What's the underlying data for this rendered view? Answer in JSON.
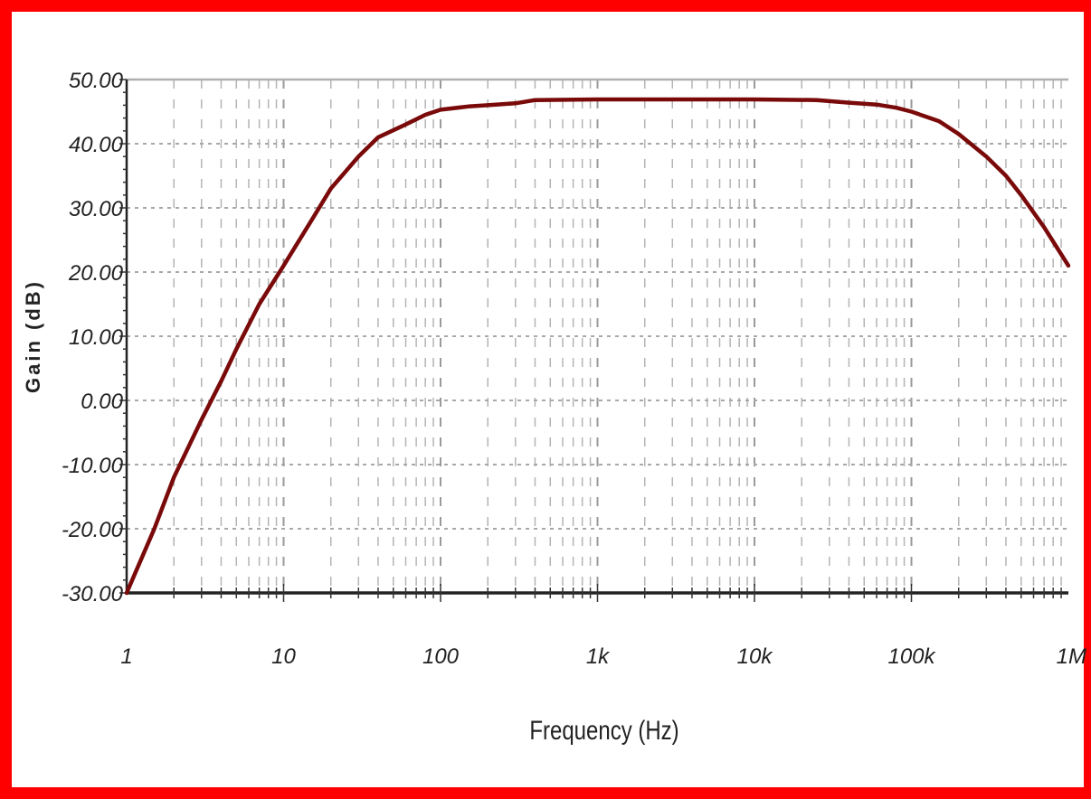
{
  "chart_data": {
    "type": "line",
    "title": "",
    "xlabel": "Frequency (Hz)",
    "ylabel": "Gain (dB)",
    "x_scale": "log",
    "xlim": [
      1,
      1000000
    ],
    "ylim": [
      -30,
      50
    ],
    "x_ticks": [
      {
        "value": 1,
        "label": "1"
      },
      {
        "value": 10,
        "label": "10"
      },
      {
        "value": 100,
        "label": "100"
      },
      {
        "value": 1000,
        "label": "1k"
      },
      {
        "value": 10000,
        "label": "10k"
      },
      {
        "value": 100000,
        "label": "100k"
      },
      {
        "value": 1000000,
        "label": "1M"
      }
    ],
    "y_ticks": [
      {
        "value": 50,
        "label": "50.00"
      },
      {
        "value": 40,
        "label": "40.00"
      },
      {
        "value": 30,
        "label": "30.00"
      },
      {
        "value": 20,
        "label": "20.00"
      },
      {
        "value": 10,
        "label": "10.00"
      },
      {
        "value": 0,
        "label": "0.00"
      },
      {
        "value": -10,
        "label": "-10.00"
      },
      {
        "value": -20,
        "label": "-20.00"
      },
      {
        "value": -30,
        "label": "-30.00"
      }
    ],
    "grid": true,
    "line_color": "#7a0a0a",
    "series": [
      {
        "x": [
          1,
          1.5,
          2,
          3,
          4,
          5,
          7,
          10,
          15,
          20,
          30,
          40,
          60,
          80,
          100,
          150,
          200,
          300,
          400,
          1000,
          10000,
          25000,
          40000,
          60000,
          80000,
          100000,
          150000,
          200000,
          300000,
          400000,
          500000,
          700000,
          1000000
        ],
        "y": [
          -30,
          -20,
          -12,
          -3,
          3,
          8,
          15,
          21,
          28,
          33,
          38,
          41,
          43,
          44.5,
          45.3,
          45.8,
          46,
          46.3,
          46.8,
          46.9,
          46.9,
          46.8,
          46.4,
          46.1,
          45.6,
          45,
          43.5,
          41.5,
          38,
          35,
          32,
          27,
          21
        ]
      }
    ]
  }
}
